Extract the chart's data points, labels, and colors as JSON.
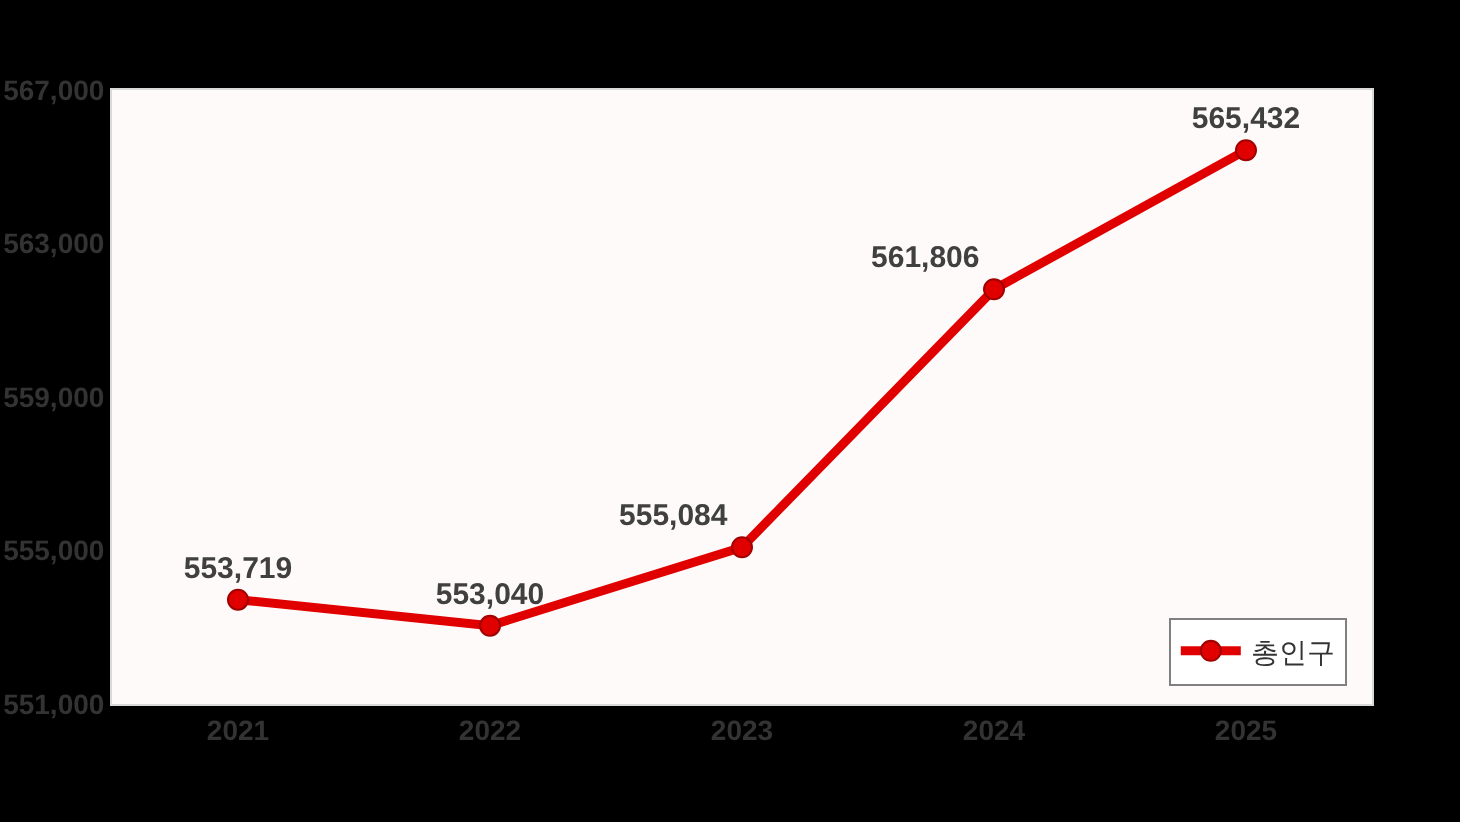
{
  "chart_data": {
    "type": "line",
    "categories": [
      "2021",
      "2022",
      "2023",
      "2024",
      "2025"
    ],
    "series": [
      {
        "name": "총인구",
        "color": "#e00000",
        "values": [
          553719,
          553040,
          555084,
          561806,
          565432
        ]
      }
    ],
    "ylim": [
      551000,
      567000
    ],
    "yticks": [
      {
        "value": 551000,
        "label": "551,000"
      },
      {
        "value": 555000,
        "label": "555,000"
      },
      {
        "value": 559000,
        "label": "559,000"
      },
      {
        "value": 563000,
        "label": "563,000"
      },
      {
        "value": 567000,
        "label": "567,000"
      }
    ],
    "value_labels": [
      "553,719",
      "553,040",
      "555,084",
      "561,806",
      "565,432"
    ],
    "grid": false,
    "legend": "bottom right",
    "marker": "circle",
    "line_style": "solid"
  }
}
